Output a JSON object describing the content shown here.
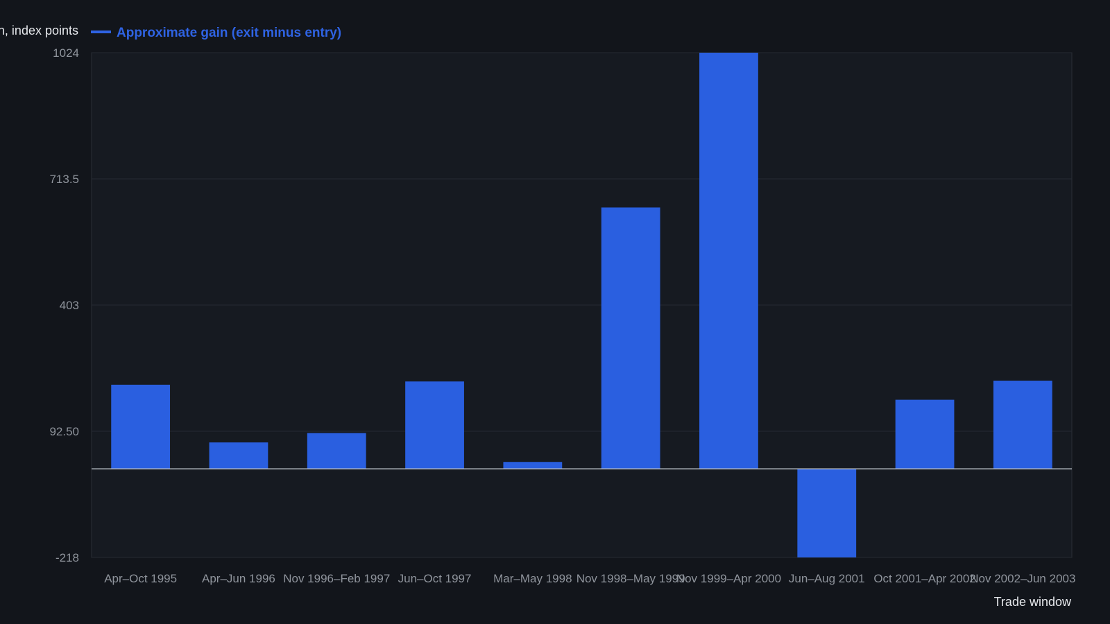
{
  "chart_data": {
    "type": "bar",
    "ylabel": "Gain, index points",
    "xlabel": "Trade window",
    "categories": [
      "Apr–Oct 1995",
      "Apr–Jun 1996",
      "Nov 1996–Feb 1997",
      "Jun–Oct 1997",
      "Mar–May 1998",
      "Nov 1998–May 1999",
      "Nov 1999–Apr 2000",
      "Jun–Aug 2001",
      "Oct 2001–Apr 2002",
      "Nov 2002–Jun 2003"
    ],
    "series": [
      {
        "name": "Approximate gain (exit minus entry)",
        "values": [
          207,
          65,
          88,
          215,
          17,
          643,
          1024,
          -218,
          170,
          217
        ]
      }
    ],
    "ylim": [
      -218,
      1024
    ],
    "yticks": [
      "1024",
      "713.5",
      "403",
      "92.50",
      "-218"
    ],
    "ytick_values": [
      1024,
      713.5,
      403,
      92.5,
      -218
    ],
    "grid": true,
    "legend_position": "top-left"
  },
  "colors": {
    "background": "#12151b",
    "plot_background": "#161a21",
    "bar": "#2a5fe0",
    "grid": "#262a32",
    "zero_line": "#b7bcc4",
    "legend_text": "#2f63e3"
  }
}
